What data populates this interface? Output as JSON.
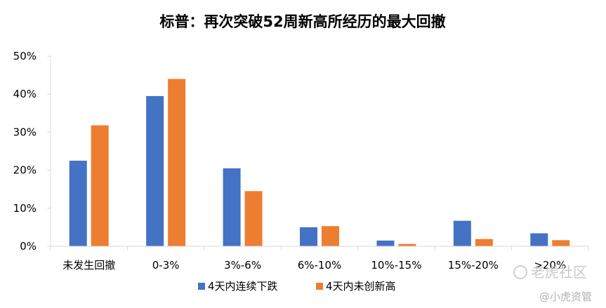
{
  "chart_data": {
    "type": "bar",
    "title": "标普：再次突破52周新高所经历的最大回撤",
    "categories": [
      "未发生回撤",
      "0-3%",
      "3%-6%",
      "6%-10%",
      "10%-15%",
      "15%-20%",
      ">20%"
    ],
    "series": [
      {
        "name": "4天内连续下跌",
        "color": "#4472c4",
        "values": [
          22.5,
          39.5,
          20.5,
          5.0,
          1.5,
          6.7,
          3.4
        ]
      },
      {
        "name": "4天内未创新高",
        "color": "#ed7d31",
        "values": [
          31.8,
          44.0,
          14.5,
          5.3,
          0.6,
          1.9,
          1.6
        ]
      }
    ],
    "yticks": [
      "0%",
      "10%",
      "20%",
      "30%",
      "40%",
      "50%"
    ],
    "ylim": [
      0,
      50
    ],
    "xlabel": "",
    "ylabel": "",
    "grid": false,
    "legend": "bottom"
  },
  "watermark": {
    "brand": "老虎社区",
    "account": "@小虎资管"
  }
}
